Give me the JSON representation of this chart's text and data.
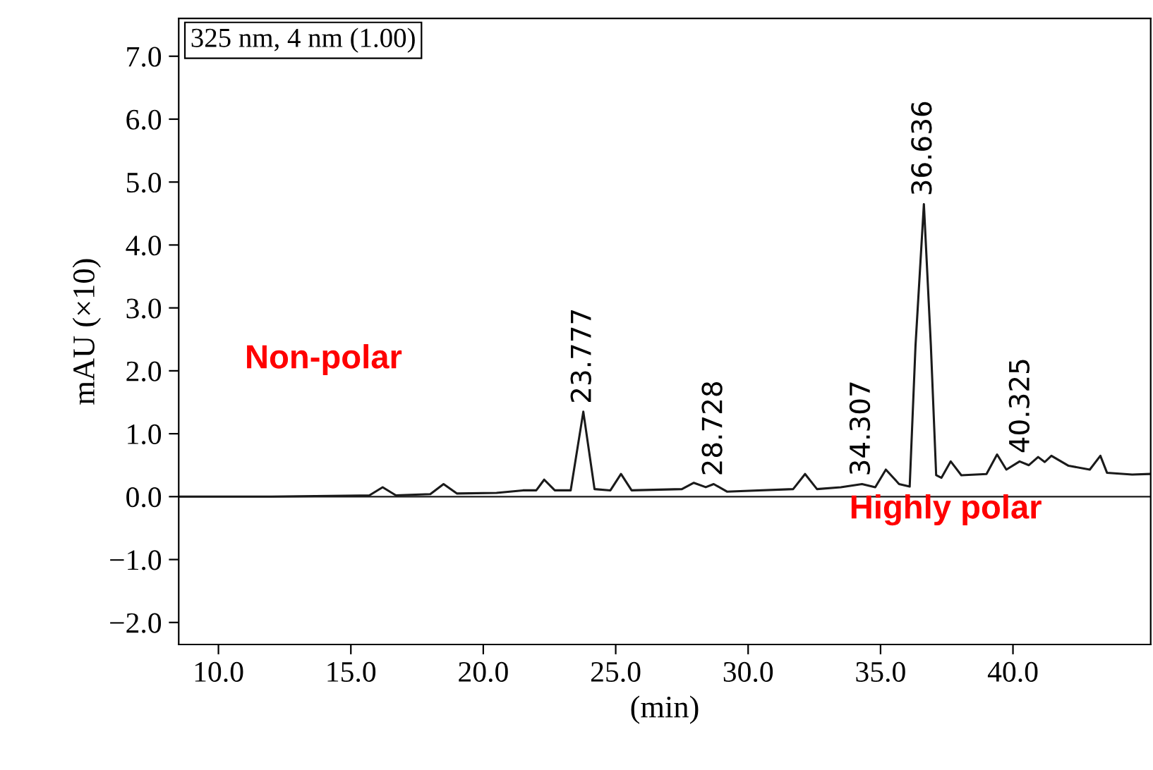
{
  "chart_data": {
    "type": "line",
    "xlabel": "(min)",
    "ylabel": "mAU (×10)",
    "x": [
      8.5,
      12,
      15.7,
      16.2,
      16.7,
      18.0,
      18.5,
      19.0,
      20.5,
      21.5,
      22.0,
      22.3,
      22.7,
      23.3,
      23.777,
      24.2,
      24.8,
      25.2,
      25.6,
      27.5,
      27.95,
      28.4,
      28.7,
      29.2,
      31.7,
      32.15,
      32.6,
      33.5,
      34.3,
      34.8,
      35.2,
      35.7,
      36.1,
      36.32,
      36.636,
      36.9,
      37.1,
      37.3,
      37.65,
      38.05,
      39.0,
      39.4,
      39.75,
      40.25,
      40.6,
      40.95,
      41.2,
      41.45,
      42.1,
      42.9,
      43.3,
      43.55,
      44.5,
      45.15
    ],
    "series": [
      {
        "color": "#1a1a1a",
        "values": [
          0.0,
          0.0,
          0.02,
          0.15,
          0.02,
          0.04,
          0.2,
          0.05,
          0.06,
          0.1,
          0.1,
          0.27,
          0.1,
          0.1,
          1.35,
          0.12,
          0.1,
          0.36,
          0.1,
          0.12,
          0.22,
          0.15,
          0.2,
          0.08,
          0.12,
          0.36,
          0.12,
          0.15,
          0.2,
          0.15,
          0.43,
          0.2,
          0.16,
          2.4,
          4.65,
          2.4,
          0.34,
          0.3,
          0.56,
          0.34,
          0.36,
          0.67,
          0.43,
          0.56,
          0.5,
          0.63,
          0.55,
          0.65,
          0.49,
          0.43,
          0.65,
          0.38,
          0.35,
          0.36
        ]
      }
    ],
    "xlim": [
      8.5,
      45.2
    ],
    "ylim": [
      -2.35,
      7.6
    ],
    "xticks": [
      {
        "value": 10,
        "label": "10.0"
      },
      {
        "value": 15,
        "label": "15.0"
      },
      {
        "value": 20,
        "label": "20.0"
      },
      {
        "value": 25,
        "label": "25.0"
      },
      {
        "value": 30,
        "label": "30.0"
      },
      {
        "value": 35,
        "label": "35.0"
      },
      {
        "value": 40,
        "label": "40.0"
      }
    ],
    "yticks": [
      {
        "value": -2,
        "label": "−2.0"
      },
      {
        "value": -1,
        "label": "−1.0"
      },
      {
        "value": 0,
        "label": "0.0"
      },
      {
        "value": 1,
        "label": "1.0"
      },
      {
        "value": 2,
        "label": "2.0"
      },
      {
        "value": 3,
        "label": "3.0"
      },
      {
        "value": 4,
        "label": "4.0"
      },
      {
        "value": 5,
        "label": "5.0"
      },
      {
        "value": 6,
        "label": "6.0"
      },
      {
        "value": 7,
        "label": "7.0"
      }
    ],
    "ref_lines": [
      {
        "axis": "y",
        "value": 0,
        "color": "#1a1a1a"
      }
    ],
    "annotations": [
      "325 nm, 4 nm (1.00)",
      "Non-polar",
      "Highly polar",
      {
        "text": "23.777",
        "x": 23.777,
        "y": 1.35
      },
      {
        "text": "28.728",
        "x": 28.728,
        "y": 0.2
      },
      {
        "text": "34.307",
        "x": 34.307,
        "y": 0.2
      },
      {
        "text": "36.636",
        "x": 36.636,
        "y": 4.65
      },
      {
        "text": "40.325",
        "x": 40.325,
        "y": 0.56
      }
    ],
    "grid": false,
    "legend": false,
    "marker": "none",
    "line_style": "solid"
  }
}
